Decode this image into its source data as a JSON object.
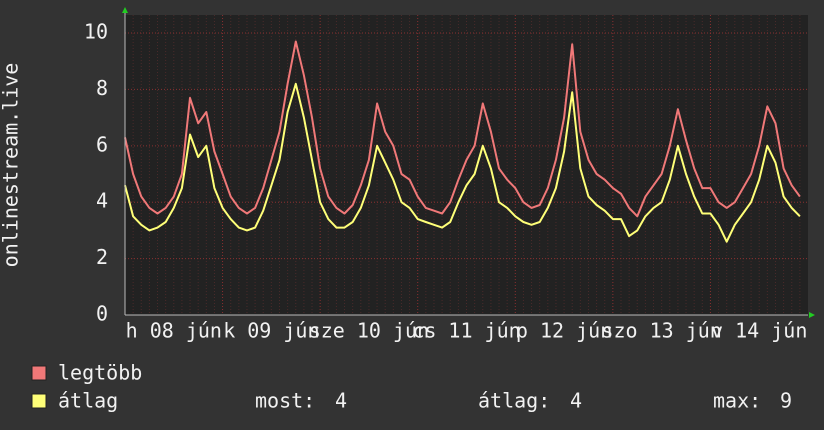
{
  "chart_data": {
    "type": "line",
    "y_label": "onlinestream.live",
    "categories": [
      null,
      null,
      null,
      null,
      null,
      null,
      "h 08 jún",
      null,
      null,
      null,
      null,
      null,
      null,
      null,
      null,
      null,
      null,
      null,
      "k 09 jún",
      null,
      null,
      null,
      null,
      null,
      null,
      null,
      null,
      null,
      null,
      null,
      "sze 10 jún",
      null,
      null,
      null,
      null,
      null,
      null,
      null,
      null,
      null,
      null,
      null,
      "cs 11 jún",
      null,
      null,
      null,
      null,
      null,
      null,
      null,
      null,
      null,
      null,
      null,
      "p 12 jún",
      null,
      null,
      null,
      null,
      null,
      null,
      null,
      null,
      null,
      null,
      null,
      "szo 13 jún",
      null,
      null,
      null,
      null,
      null,
      null,
      null,
      null,
      null,
      null,
      null,
      "v 14 jún",
      null,
      null,
      null,
      null,
      null
    ],
    "series": [
      {
        "name": "legtöbb",
        "color": "#f07878",
        "values": [
          6.3,
          5,
          4.2,
          3.8,
          3.6,
          3.8,
          4.2,
          5,
          7.7,
          6.8,
          7.2,
          5.8,
          5,
          4.2,
          3.8,
          3.6,
          3.8,
          4.5,
          5.5,
          6.5,
          8.2,
          9.7,
          8.5,
          7,
          5.2,
          4.2,
          3.8,
          3.6,
          3.9,
          4.6,
          5.5,
          7.5,
          6.5,
          6,
          5,
          4.8,
          4.2,
          3.8,
          3.7,
          3.6,
          4,
          4.8,
          5.5,
          6,
          7.5,
          6.5,
          5.2,
          4.8,
          4.5,
          4,
          3.8,
          3.9,
          4.5,
          5.5,
          7,
          9.6,
          6.5,
          5.5,
          5,
          4.8,
          4.5,
          4.3,
          3.8,
          3.5,
          4.2,
          4.6,
          5,
          6,
          7.3,
          6.2,
          5.2,
          4.5,
          4.5,
          4,
          3.8,
          4,
          4.5,
          5,
          6,
          7.4,
          6.8,
          5.2,
          4.6,
          4.2
        ]
      },
      {
        "name": "átlag",
        "color": "#ffff78",
        "values": [
          4.6,
          3.5,
          3.2,
          3.0,
          3.1,
          3.3,
          3.8,
          4.5,
          6.4,
          5.6,
          6,
          4.5,
          3.8,
          3.4,
          3.1,
          3.0,
          3.1,
          3.7,
          4.6,
          5.5,
          7.2,
          8.2,
          7,
          5.5,
          4,
          3.4,
          3.1,
          3.1,
          3.3,
          3.8,
          4.6,
          6,
          5.4,
          4.8,
          4,
          3.8,
          3.4,
          3.3,
          3.2,
          3.1,
          3.3,
          4,
          4.6,
          5,
          6,
          5.2,
          4,
          3.8,
          3.5,
          3.3,
          3.2,
          3.3,
          3.8,
          4.5,
          5.8,
          7.9,
          5.2,
          4.2,
          3.9,
          3.7,
          3.4,
          3.4,
          2.8,
          3,
          3.5,
          3.8,
          4,
          4.8,
          6,
          5,
          4.2,
          3.6,
          3.6,
          3.2,
          2.6,
          3.2,
          3.6,
          4,
          4.8,
          6,
          5.4,
          4.2,
          3.8,
          3.5
        ]
      }
    ],
    "ylim": [
      0,
      10.64
    ],
    "yticks": [
      0,
      2,
      4,
      6,
      8,
      10
    ],
    "grid": true,
    "stats": [
      {
        "label": "most:",
        "value": 4
      },
      {
        "label": "átlag:",
        "value": 4
      },
      {
        "label": "max:",
        "value": 9
      }
    ]
  }
}
